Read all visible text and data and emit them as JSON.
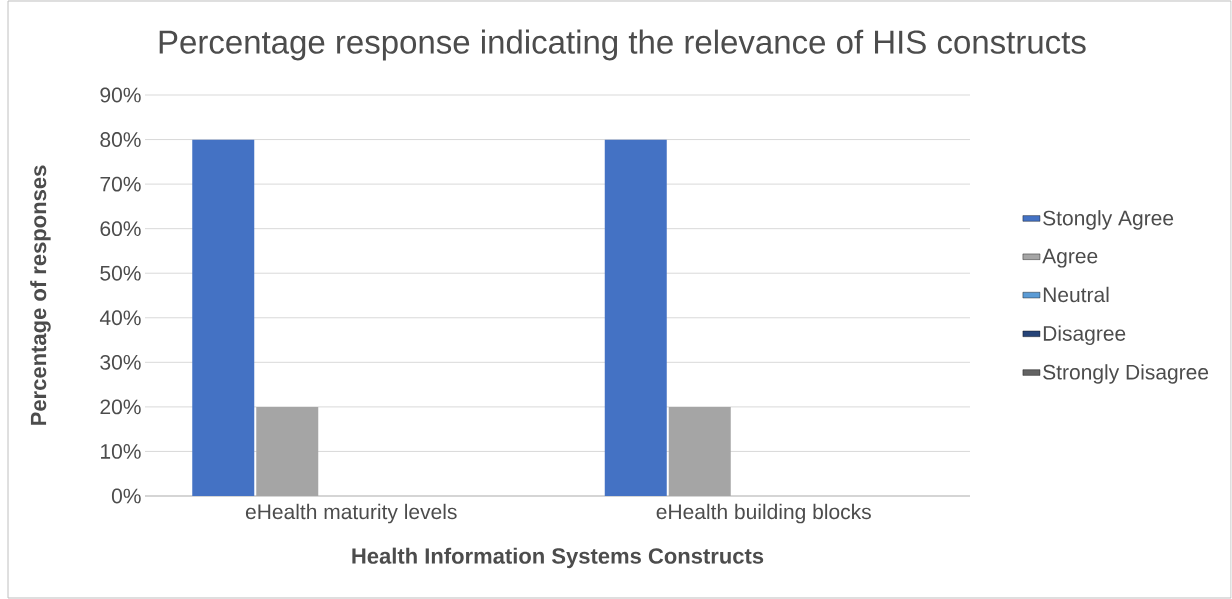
{
  "chart_data": {
    "type": "bar",
    "title": "Percentage response indicating the relevance of HIS constructs",
    "xlabel": "Health Information Systems Constructs",
    "ylabel": "Percentage of responses",
    "categories": [
      "eHealth maturity levels",
      "eHealth building blocks"
    ],
    "series": [
      {
        "name": "Stongly Agree",
        "color": "#4472c4",
        "values": [
          80,
          80
        ]
      },
      {
        "name": "Agree",
        "color": "#a5a5a5",
        "values": [
          20,
          20
        ]
      },
      {
        "name": "Neutral",
        "color": "#5b9bd5",
        "values": [
          0,
          0
        ]
      },
      {
        "name": "Disagree",
        "color": "#264478",
        "values": [
          0,
          0
        ]
      },
      {
        "name": "Strongly Disagree",
        "color": "#636363",
        "values": [
          0,
          0
        ]
      }
    ],
    "ylim": [
      0,
      90
    ],
    "yticks": [
      {
        "value": 0,
        "label": "0%"
      },
      {
        "value": 10,
        "label": "10%"
      },
      {
        "value": 20,
        "label": "20%"
      },
      {
        "value": 30,
        "label": "30%"
      },
      {
        "value": 40,
        "label": "40%"
      },
      {
        "value": 50,
        "label": "50%"
      },
      {
        "value": 60,
        "label": "60%"
      },
      {
        "value": 70,
        "label": "70%"
      },
      {
        "value": 80,
        "label": "80%"
      },
      {
        "value": 90,
        "label": "90%"
      }
    ],
    "grid": "y",
    "legend": "right"
  }
}
